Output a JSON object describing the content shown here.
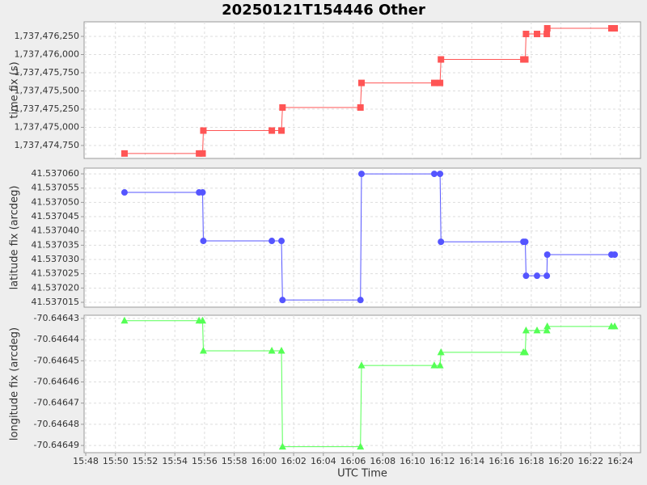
{
  "chart_data": [
    {
      "type": "line",
      "title": "20250121T154446 Other",
      "ylabel": "time fix (s)",
      "grid": true,
      "xlim": [
        947.89,
        985.36
      ],
      "x": [
        950.61,
        955.63,
        955.87,
        955.92,
        960.53,
        961.18,
        961.25,
        966.5,
        966.57,
        971.47,
        971.86,
        971.92,
        977.47,
        977.6,
        977.65,
        978.39,
        979.05,
        979.08,
        983.4,
        983.62
      ],
      "series": [
        {
          "name": "time fix",
          "color": "#ff5555",
          "marker": "square",
          "values": [
            1737474640,
            1737474640,
            1737474640,
            1737474955,
            1737474955,
            1737474955,
            1737475272,
            1737475272,
            1737475610,
            1737475610,
            1737475610,
            1737475933,
            1737475933,
            1737475933,
            1737476283,
            1737476283,
            1737476283,
            1737476361,
            1737476361,
            1737476361
          ]
        }
      ],
      "ylim": [
        1737474572,
        1737476450
      ],
      "yticks": [
        {
          "value": 1737474750,
          "label": "1,737,474,750"
        },
        {
          "value": 1737475000,
          "label": "1,737,475,000"
        },
        {
          "value": 1737475250,
          "label": "1,737,475,250"
        },
        {
          "value": 1737475500,
          "label": "1,737,475,500"
        },
        {
          "value": 1737475750,
          "label": "1,737,475,750"
        },
        {
          "value": 1737476000,
          "label": "1,737,476,000"
        },
        {
          "value": 1737476250,
          "label": "1,737,476,250"
        }
      ]
    },
    {
      "type": "line",
      "ylabel": "latitude fix (arcdeg)",
      "grid": true,
      "xlim": [
        947.89,
        985.36
      ],
      "x": [
        950.61,
        955.63,
        955.87,
        955.92,
        960.53,
        961.18,
        961.25,
        966.5,
        966.57,
        971.47,
        971.86,
        971.92,
        977.47,
        977.6,
        977.65,
        978.39,
        979.05,
        979.08,
        983.4,
        983.62
      ],
      "series": [
        {
          "name": "latitude fix",
          "color": "#5555ff",
          "marker": "circle",
          "values": [
            41.5370535,
            41.5370535,
            41.5370535,
            41.5370365,
            41.5370365,
            41.5370365,
            41.5370158,
            41.5370158,
            41.53706,
            41.53706,
            41.53706,
            41.5370362,
            41.5370362,
            41.5370362,
            41.5370243,
            41.5370243,
            41.5370243,
            41.5370317,
            41.5370317,
            41.5370317
          ]
        }
      ],
      "ylim": [
        41.5370133,
        41.537062
      ],
      "yticks": [
        {
          "value": 41.537015,
          "label": "41.537015"
        },
        {
          "value": 41.53702,
          "label": "41.537020"
        },
        {
          "value": 41.537025,
          "label": "41.537025"
        },
        {
          "value": 41.53703,
          "label": "41.537030"
        },
        {
          "value": 41.537035,
          "label": "41.537035"
        },
        {
          "value": 41.53704,
          "label": "41.537040"
        },
        {
          "value": 41.537045,
          "label": "41.537045"
        },
        {
          "value": 41.53705,
          "label": "41.537050"
        },
        {
          "value": 41.537055,
          "label": "41.537055"
        },
        {
          "value": 41.53706,
          "label": "41.537060"
        }
      ]
    },
    {
      "type": "line",
      "ylabel": "longitude fix (arcdeg)",
      "xlabel": "UTC Time",
      "grid": true,
      "xlim": [
        947.89,
        985.36
      ],
      "xticks": [
        {
          "value": 948,
          "label": "15:48"
        },
        {
          "value": 950,
          "label": "15:50"
        },
        {
          "value": 952,
          "label": "15:52"
        },
        {
          "value": 954,
          "label": "15:54"
        },
        {
          "value": 956,
          "label": "15:56"
        },
        {
          "value": 958,
          "label": "15:58"
        },
        {
          "value": 960,
          "label": "16:00"
        },
        {
          "value": 962,
          "label": "16:02"
        },
        {
          "value": 964,
          "label": "16:04"
        },
        {
          "value": 966,
          "label": "16:06"
        },
        {
          "value": 968,
          "label": "16:08"
        },
        {
          "value": 970,
          "label": "16:10"
        },
        {
          "value": 972,
          "label": "16:12"
        },
        {
          "value": 974,
          "label": "16:14"
        },
        {
          "value": 976,
          "label": "16:16"
        },
        {
          "value": 978,
          "label": "16:18"
        },
        {
          "value": 980,
          "label": "16:20"
        },
        {
          "value": 982,
          "label": "16:22"
        },
        {
          "value": 984,
          "label": "16:24"
        }
      ],
      "x": [
        950.61,
        955.63,
        955.87,
        955.92,
        960.53,
        961.18,
        961.25,
        966.5,
        966.57,
        971.47,
        971.86,
        971.92,
        977.47,
        977.6,
        977.65,
        978.39,
        979.05,
        979.08,
        983.4,
        983.62
      ],
      "series": [
        {
          "name": "longitude fix",
          "color": "#55ff55",
          "marker": "triangle",
          "values": [
            -70.6464311,
            -70.6464311,
            -70.6464311,
            -70.6464453,
            -70.6464453,
            -70.6464453,
            -70.6464906,
            -70.6464906,
            -70.6464522,
            -70.6464522,
            -70.6464522,
            -70.646446,
            -70.646446,
            -70.646446,
            -70.6464357,
            -70.6464357,
            -70.6464357,
            -70.6464338,
            -70.6464338,
            -70.6464338
          ]
        }
      ],
      "ylim": [
        -70.6464934,
        -70.6464285
      ],
      "yticks": [
        -70.64649,
        -70.64648,
        -70.64647,
        -70.64646,
        -70.64645,
        -70.64644,
        -70.64643
      ]
    }
  ]
}
